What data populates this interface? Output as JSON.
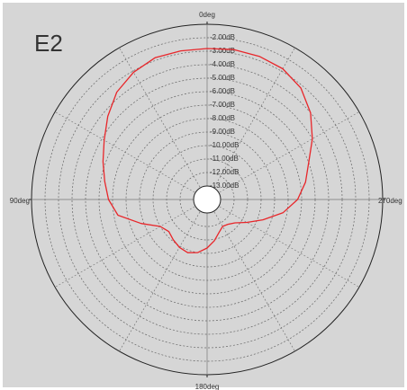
{
  "chart_data": {
    "type": "polar",
    "title": "E2",
    "direction": "counterclockwise",
    "rlim": [
      -14,
      -1
    ],
    "rticks": [
      {
        "value": -2,
        "label": "-2.00dB"
      },
      {
        "value": -3,
        "label": "-3.00dB"
      },
      {
        "value": -4,
        "label": "-4.00dB"
      },
      {
        "value": -5,
        "label": "-5.00dB"
      },
      {
        "value": -6,
        "label": "-6.00dB"
      },
      {
        "value": -7,
        "label": "-7.00dB"
      },
      {
        "value": -8,
        "label": "-8.00dB"
      },
      {
        "value": -9,
        "label": "-9.00dB"
      },
      {
        "value": -10,
        "label": "-10.00dB"
      },
      {
        "value": -11,
        "label": "-11.00dB"
      },
      {
        "value": -12,
        "label": "-12.00dB"
      },
      {
        "value": -13,
        "label": "-13.00dB"
      }
    ],
    "thetaticks": [
      {
        "value": 0,
        "label": "0deg"
      },
      {
        "value": 90,
        "label": "90deg"
      },
      {
        "value": 180,
        "label": "180deg"
      },
      {
        "value": 270,
        "label": "270deg"
      }
    ],
    "theta": [
      0,
      10,
      20,
      30,
      40,
      50,
      60,
      70,
      80,
      90,
      100,
      110,
      120,
      130,
      140,
      150,
      160,
      170,
      180,
      190,
      200,
      210,
      220,
      230,
      240,
      250,
      260,
      270,
      280,
      290,
      300,
      310,
      320,
      330,
      340,
      350
    ],
    "series": [
      {
        "color": "#e8262a",
        "values": [
          -2.8,
          -2.8,
          -2.8,
          -3.1,
          -3.6,
          -4.4,
          -5.2,
          -5.8,
          -6.3,
          -6.7,
          -7.3,
          -8.8,
          -10.0,
          -10.3,
          -10.1,
          -9.9,
          -9.8,
          -10.0,
          -10.4,
          -10.9,
          -11.4,
          -11.7,
          -11.6,
          -11.3,
          -10.6,
          -9.6,
          -8.3,
          -7.3,
          -6.6,
          -6.0,
          -5.0,
          -4.0,
          -3.2,
          -2.8,
          -2.7,
          -2.7
        ]
      }
    ]
  }
}
